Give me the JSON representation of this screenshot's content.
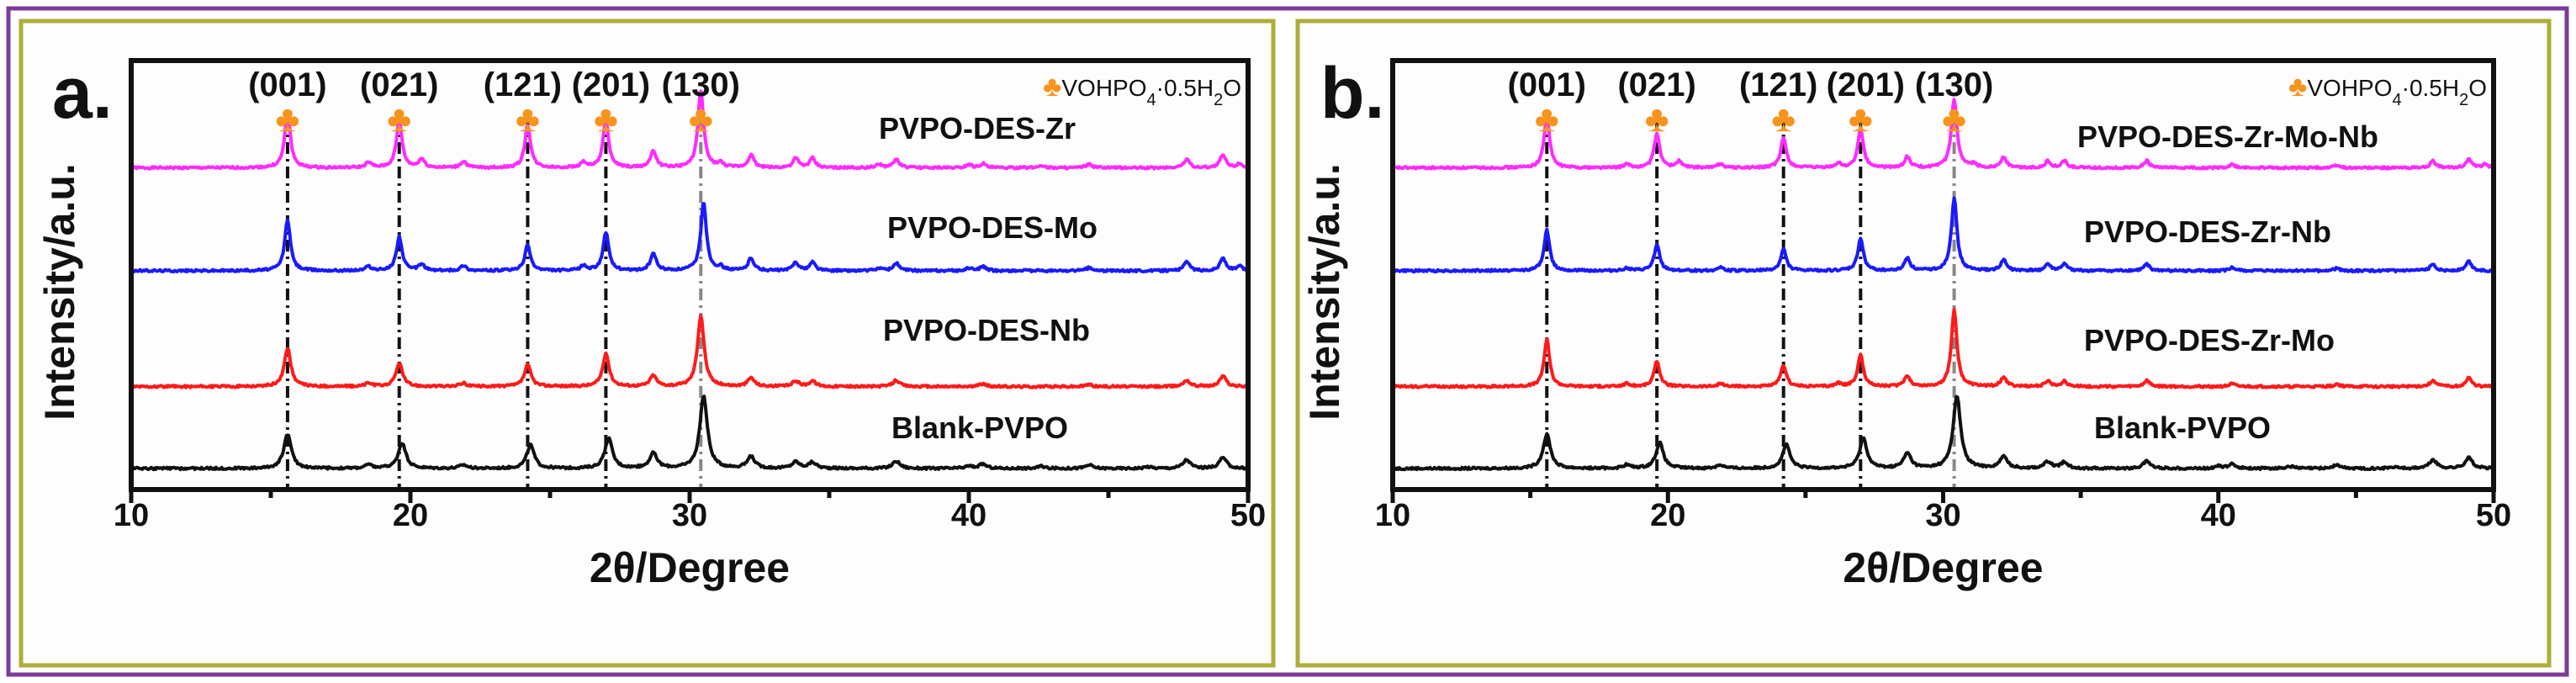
{
  "chart_data": [
    {
      "type": "line",
      "panel_label": "a.",
      "xlabel": "2θ/Degree",
      "ylabel": "Intensity/a.u.",
      "xlim": [
        10,
        50
      ],
      "xticks": [
        "10",
        "20",
        "30",
        "40",
        "50"
      ],
      "ylim": [
        0,
        100
      ],
      "grid": false,
      "legend": {
        "marker": "♣",
        "text": "VOHPO4·0.5H2O",
        "color": "#f7941d",
        "placement": "top-right"
      },
      "reference_peaks": [
        {
          "hkl": "(001)",
          "x": 15.6
        },
        {
          "hkl": "(021)",
          "x": 19.6
        },
        {
          "hkl": "(121)",
          "x": 24.2
        },
        {
          "hkl": "(201)",
          "x": 27.0
        },
        {
          "hkl": "(130)",
          "x": 30.4
        }
      ],
      "series": [
        {
          "name": "PVPO-DES-Zr",
          "color": "#ff2bff",
          "offset": 75,
          "width": 0.12,
          "peaks": [
            [
              15.6,
              13
            ],
            [
              18.5,
              1.2
            ],
            [
              19.6,
              11
            ],
            [
              20.4,
              2
            ],
            [
              21.9,
              1.5
            ],
            [
              24.2,
              10
            ],
            [
              26.2,
              1.3
            ],
            [
              27.0,
              11
            ],
            [
              28.7,
              4
            ],
            [
              30.4,
              18
            ],
            [
              31.1,
              1
            ],
            [
              32.2,
              3
            ],
            [
              33.8,
              2.2
            ],
            [
              34.4,
              2.2
            ],
            [
              36.8,
              0.8
            ],
            [
              37.4,
              2
            ],
            [
              40.0,
              0.8
            ],
            [
              40.5,
              1
            ],
            [
              42.6,
              0.6
            ],
            [
              44.3,
              0.8
            ],
            [
              47.8,
              2
            ],
            [
              49.1,
              3
            ],
            [
              49.7,
              1
            ]
          ]
        },
        {
          "name": "PVPO-DES-Mo",
          "color": "#1a1aff",
          "offset": 51,
          "width": 0.12,
          "peaks": [
            [
              15.6,
              12
            ],
            [
              18.5,
              1
            ],
            [
              19.6,
              8
            ],
            [
              20.4,
              1.5
            ],
            [
              21.9,
              1.2
            ],
            [
              24.2,
              6
            ],
            [
              26.2,
              1.2
            ],
            [
              27.0,
              9
            ],
            [
              28.7,
              4
            ],
            [
              30.5,
              16
            ],
            [
              31.1,
              0.8
            ],
            [
              32.2,
              3
            ],
            [
              33.8,
              2
            ],
            [
              34.4,
              2
            ],
            [
              36.8,
              0.6
            ],
            [
              37.4,
              1.8
            ],
            [
              40.0,
              0.6
            ],
            [
              40.5,
              1
            ],
            [
              44.3,
              0.7
            ],
            [
              47.8,
              2
            ],
            [
              49.1,
              3
            ],
            [
              49.7,
              1
            ]
          ]
        },
        {
          "name": "PVPO-DES-Nb",
          "color": "#ff1a1a",
          "offset": 24,
          "width": 0.14,
          "peaks": [
            [
              15.6,
              9
            ],
            [
              18.5,
              0.8
            ],
            [
              19.6,
              5.5
            ],
            [
              21.9,
              0.8
            ],
            [
              24.2,
              5
            ],
            [
              27.0,
              7.5
            ],
            [
              28.7,
              2.5
            ],
            [
              30.4,
              16.6
            ],
            [
              32.2,
              2
            ],
            [
              33.8,
              1.3
            ],
            [
              34.4,
              1.3
            ],
            [
              37.4,
              1.5
            ],
            [
              40.5,
              0.6
            ],
            [
              44.3,
              0.5
            ],
            [
              47.8,
              1.5
            ],
            [
              49.1,
              2.5
            ]
          ]
        },
        {
          "name": "Blank-PVPO",
          "color": "#111111",
          "offset": 4.9,
          "width": 0.16,
          "peaks": [
            [
              15.6,
              8
            ],
            [
              18.5,
              0.8
            ],
            [
              19.7,
              6
            ],
            [
              21.9,
              0.8
            ],
            [
              24.3,
              5.5
            ],
            [
              27.1,
              7
            ],
            [
              28.7,
              3.5
            ],
            [
              30.5,
              17
            ],
            [
              32.2,
              2.7
            ],
            [
              33.8,
              1.5
            ],
            [
              34.4,
              1.4
            ],
            [
              37.4,
              1.7
            ],
            [
              40.0,
              0.5
            ],
            [
              40.5,
              1
            ],
            [
              42.6,
              0.5
            ],
            [
              44.3,
              0.8
            ],
            [
              46.4,
              0.4
            ],
            [
              47.8,
              2
            ],
            [
              49.1,
              2.5
            ]
          ]
        }
      ]
    },
    {
      "type": "line",
      "panel_label": "b.",
      "xlabel": "2θ/Degree",
      "ylabel": "Intensity/a.u.",
      "xlim": [
        10,
        50
      ],
      "xticks": [
        "10",
        "20",
        "30",
        "40",
        "50"
      ],
      "ylim": [
        0,
        100
      ],
      "grid": false,
      "legend": {
        "marker": "♣",
        "text": "VOHPO4·0.5H2O",
        "color": "#f7941d",
        "placement": "top-right"
      },
      "reference_peaks": [
        {
          "hkl": "(001)",
          "x": 15.6
        },
        {
          "hkl": "(021)",
          "x": 19.6
        },
        {
          "hkl": "(121)",
          "x": 24.2
        },
        {
          "hkl": "(201)",
          "x": 27.0
        },
        {
          "hkl": "(130)",
          "x": 30.4
        }
      ],
      "series": [
        {
          "name": "PVPO-DES-Zr-Mo-Nb",
          "color": "#ff2bff",
          "offset": 75,
          "width": 0.12,
          "peaks": [
            [
              15.6,
              12
            ],
            [
              18.5,
              0.8
            ],
            [
              19.6,
              8
            ],
            [
              20.4,
              1.5
            ],
            [
              21.9,
              1
            ],
            [
              24.2,
              7
            ],
            [
              26.2,
              1
            ],
            [
              27.0,
              9
            ],
            [
              28.7,
              2.5
            ],
            [
              30.4,
              16
            ],
            [
              31.1,
              0.8
            ],
            [
              32.2,
              2.5
            ],
            [
              33.8,
              1.5
            ],
            [
              34.4,
              1.6
            ],
            [
              37.4,
              1.6
            ],
            [
              40.5,
              0.7
            ],
            [
              44.3,
              0.6
            ],
            [
              47.8,
              1.5
            ],
            [
              49.1,
              2
            ],
            [
              49.7,
              0.8
            ]
          ]
        },
        {
          "name": "PVPO-DES-Zr-Nb",
          "color": "#1a1aff",
          "offset": 51,
          "width": 0.12,
          "peaks": [
            [
              15.6,
              9.5
            ],
            [
              18.5,
              0.6
            ],
            [
              19.6,
              6
            ],
            [
              21.9,
              0.8
            ],
            [
              24.2,
              5
            ],
            [
              27.0,
              7.5
            ],
            [
              28.7,
              3
            ],
            [
              30.4,
              17
            ],
            [
              32.2,
              2.5
            ],
            [
              33.8,
              1.5
            ],
            [
              34.4,
              1.5
            ],
            [
              37.4,
              1.5
            ],
            [
              40.5,
              0.7
            ],
            [
              44.3,
              0.6
            ],
            [
              47.8,
              1.6
            ],
            [
              49.1,
              2.2
            ]
          ]
        },
        {
          "name": "PVPO-DES-Zr-Mo",
          "color": "#ff1a1a",
          "offset": 24,
          "width": 0.12,
          "peaks": [
            [
              15.6,
              11
            ],
            [
              18.5,
              0.7
            ],
            [
              19.6,
              6
            ],
            [
              21.9,
              0.7
            ],
            [
              24.2,
              5
            ],
            [
              26.2,
              0.8
            ],
            [
              27.0,
              7.5
            ],
            [
              28.7,
              2.5
            ],
            [
              30.4,
              18
            ],
            [
              32.2,
              2.3
            ],
            [
              33.8,
              1.3
            ],
            [
              34.4,
              1.3
            ],
            [
              37.4,
              1.4
            ],
            [
              40.5,
              0.6
            ],
            [
              44.3,
              0.6
            ],
            [
              47.8,
              1.5
            ],
            [
              49.1,
              2
            ]
          ]
        },
        {
          "name": "Blank-PVPO",
          "color": "#111111",
          "offset": 4.9,
          "width": 0.16,
          "peaks": [
            [
              15.6,
              8
            ],
            [
              18.5,
              0.8
            ],
            [
              19.7,
              6
            ],
            [
              21.9,
              0.8
            ],
            [
              24.3,
              5.5
            ],
            [
              27.1,
              7
            ],
            [
              28.7,
              3.5
            ],
            [
              30.5,
              17
            ],
            [
              32.2,
              2.7
            ],
            [
              33.8,
              1.5
            ],
            [
              34.4,
              1.4
            ],
            [
              37.4,
              1.7
            ],
            [
              40.0,
              0.5
            ],
            [
              40.5,
              1
            ],
            [
              42.6,
              0.5
            ],
            [
              44.3,
              0.8
            ],
            [
              46.4,
              0.4
            ],
            [
              47.8,
              2
            ],
            [
              49.1,
              2.5
            ]
          ]
        }
      ]
    }
  ],
  "colors": {
    "outer_border": "#7d3c98",
    "panel_border": "#aead3a",
    "marker": "#f7941d"
  }
}
